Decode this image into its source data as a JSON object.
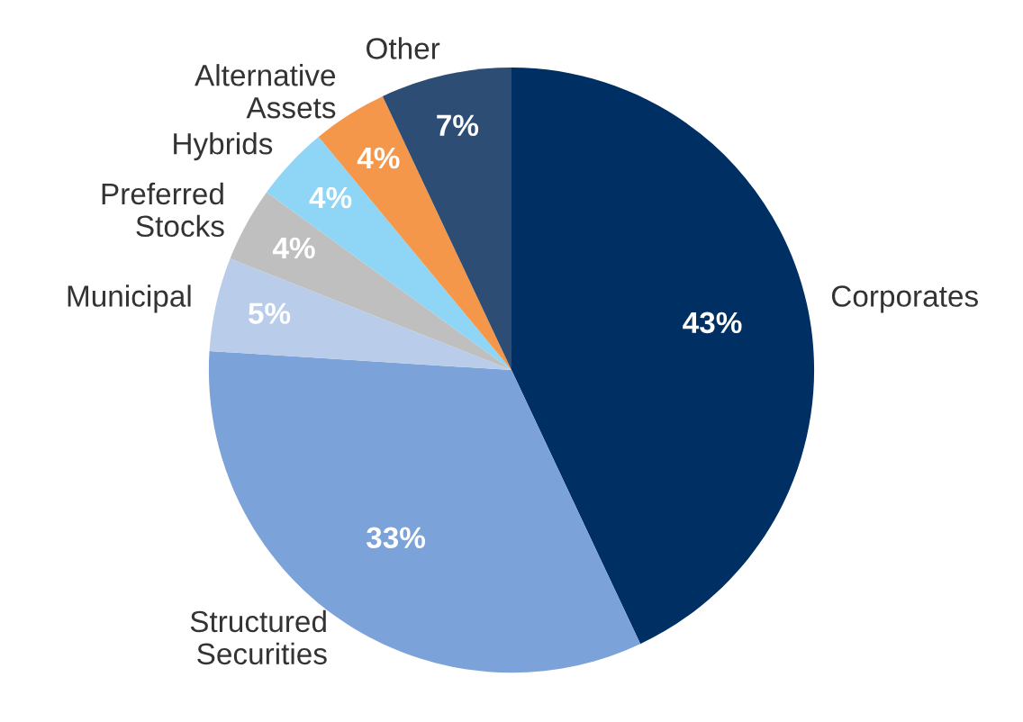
{
  "chart_data": {
    "type": "pie",
    "categories": [
      "Corporates",
      "Structured\nSecurities",
      "Municipal",
      "Preferred\nStocks",
      "Hybrids",
      "Alternative\nAssets",
      "Other"
    ],
    "values": [
      43,
      33,
      5,
      4,
      4,
      4,
      7
    ],
    "colors": [
      "#003063",
      "#7ba2d9",
      "#b9cdea",
      "#bfbfbf",
      "#8fd5f6",
      "#f5974b",
      "#2d4d75"
    ],
    "value_labels": [
      "43%",
      "33%",
      "5%",
      "4%",
      "4%",
      "4%",
      "7%"
    ],
    "legend": false
  }
}
